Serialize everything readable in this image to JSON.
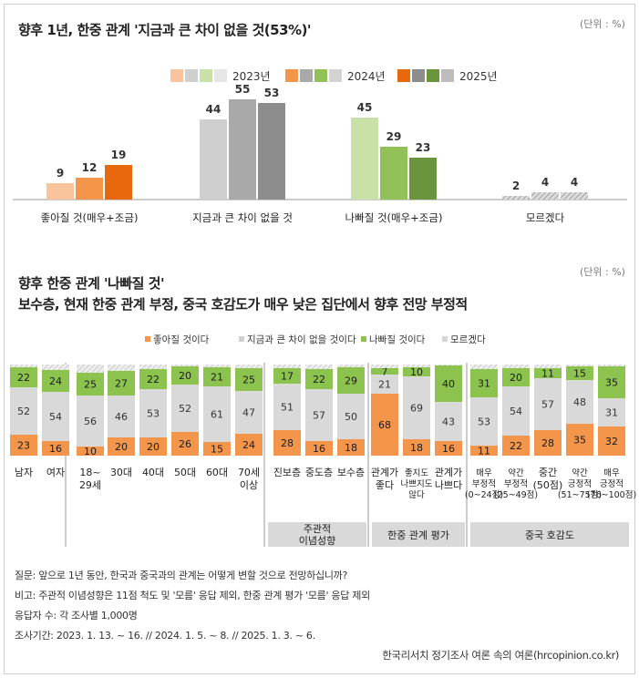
{
  "header": {
    "title": "향후 1년, 한중 관계 '지금과 큰 차이 없을 것(53%)'",
    "unit": "(단위 : %)"
  },
  "section2": {
    "title_line1": "향후 한중 관계 '나빠질 것'",
    "title_line2": "보수층, 현재 한중 관계 부정, 중국 호감도가 매우 낮은 집단에서 향후 전망 부정적",
    "unit": "(단위 : %)"
  },
  "colors": {
    "good": [
      "#f9c49b",
      "#f3954a",
      "#e8680e"
    ],
    "same": [
      "#cfcfcf",
      "#a9a9a9",
      "#8c8c8c"
    ],
    "bad": [
      "#c9e0a7",
      "#92c157",
      "#6a953c"
    ],
    "dk": [
      "#e6e6e6",
      "#d3d3d3",
      "#bdbdbd"
    ],
    "stack_good": "#f3954a",
    "stack_same": "#d9d9d9",
    "stack_bad": "#8cc34e",
    "stack_dk": "#ececec",
    "group_bg": "#d9d9d9"
  },
  "chart_data": [
    {
      "type": "bar",
      "title": "향후 1년, 한중 관계 '지금과 큰 차이 없을 것(53%)'",
      "categories": [
        "좋아질 것(매우+조금)",
        "지금과 큰 차이 없을 것",
        "나빠질 것(매우+조금)",
        "모르겠다"
      ],
      "series": [
        {
          "name": "2023년",
          "values": [
            9,
            44,
            45,
            2
          ]
        },
        {
          "name": "2024년",
          "values": [
            12,
            55,
            29,
            4
          ]
        },
        {
          "name": "2025년",
          "values": [
            19,
            53,
            23,
            4
          ]
        }
      ],
      "ylim": [
        0,
        100
      ]
    },
    {
      "type": "bar",
      "stacked": true,
      "title": "향후 한중 관계 '나빠질 것'",
      "legend": [
        "좋아질 것이다",
        "지금과 큰 차이 없을 것이다",
        "나빠질 것이다",
        "모르겠다"
      ],
      "categories": [
        "남자",
        "여자",
        "18~29세",
        "30대",
        "40대",
        "50대",
        "60대",
        "70세 이상",
        "진보층",
        "중도층",
        "보수층",
        "관계가 좋다",
        "좋지도 나쁘지도 않다",
        "관계가 나쁘다",
        "매우 부정적 (0~24점)",
        "약간 부정적 (25~49점)",
        "중간 (50점)",
        "약간 긍정적 (51~75점)",
        "매우 긍정적 (76~100점)"
      ],
      "series": [
        {
          "name": "좋아질 것이다",
          "values": [
            23,
            16,
            10,
            20,
            20,
            26,
            15,
            24,
            28,
            16,
            18,
            68,
            18,
            16,
            11,
            22,
            28,
            35,
            32
          ]
        },
        {
          "name": "지금과 큰 차이 없을 것이다",
          "values": [
            52,
            54,
            56,
            46,
            53,
            52,
            61,
            47,
            51,
            57,
            50,
            21,
            69,
            43,
            53,
            54,
            57,
            48,
            31
          ]
        },
        {
          "name": "나빠질 것이다",
          "values": [
            22,
            24,
            25,
            27,
            22,
            20,
            21,
            25,
            17,
            22,
            29,
            7,
            10,
            40,
            31,
            20,
            11,
            15,
            35
          ]
        },
        {
          "name": "모르겠다",
          "values": [
            3,
            6,
            9,
            7,
            5,
            2,
            3,
            4,
            4,
            5,
            3,
            4,
            3,
            1,
            5,
            4,
            4,
            2,
            2
          ]
        }
      ],
      "ylim": [
        0,
        100
      ]
    }
  ],
  "chart1_text": {
    "legend_years": [
      "2023년",
      "2024년",
      "2025년"
    ]
  },
  "chart2_text": {
    "cat_lines": [
      [
        "남자"
      ],
      [
        "여자"
      ],
      [
        "18~",
        "29세"
      ],
      [
        "30대"
      ],
      [
        "40대"
      ],
      [
        "50대"
      ],
      [
        "60대"
      ],
      [
        "70세",
        "이상"
      ],
      [
        "진보층"
      ],
      [
        "중도층"
      ],
      [
        "보수층"
      ],
      [
        "관계가",
        "좋다"
      ],
      [
        "좋지도",
        "나쁘지도",
        "않다"
      ],
      [
        "관계가",
        "나쁘다"
      ],
      [
        "매우",
        "부정적",
        "(0~24점)"
      ],
      [
        "약간",
        "부정적",
        "(25~49점)"
      ],
      [
        "중간",
        "(50점)"
      ],
      [
        "약간",
        "긍정적",
        "(51~75점)"
      ],
      [
        "매우",
        "긍정적",
        "(76~100점)"
      ]
    ],
    "groups": [
      [
        "주관적",
        "이념성향"
      ],
      [
        "한중 관계 평가"
      ],
      [
        "중국 호감도"
      ]
    ]
  },
  "footer": {
    "q": "질문: 앞으로 1년 동안, 한국과 중국과의 관계는 어떻게 변할 것으로 전망하십니까?",
    "note": "비고: 주관적 이념성향은 11점 척도 및 '모름' 응답 제외, 한중 관계 평가 '모름' 응답 제외",
    "n": "응답자 수: 각 조사별 1,000명",
    "period": "조사기간: 2023. 1. 13. ~ 16.  // 2024. 1. 5. ~ 8. // 2025. 1. 3. ~ 6.",
    "source": "한국리서치 정기조사 여론 속의 여론(hrcopinion.co.kr)"
  }
}
